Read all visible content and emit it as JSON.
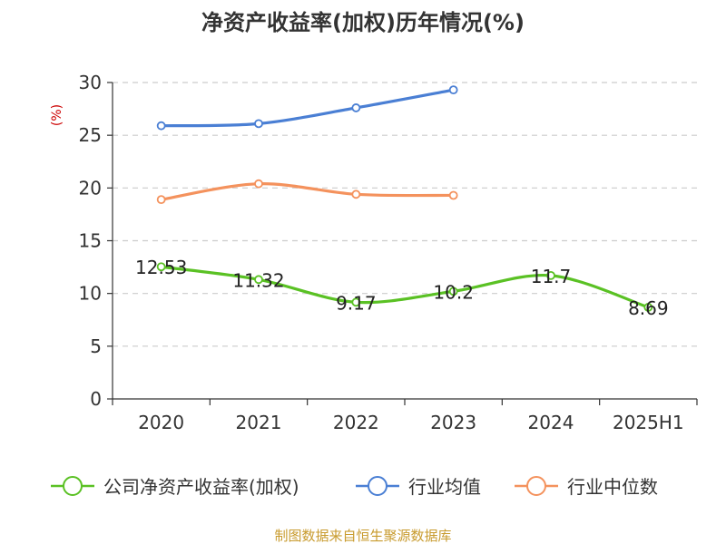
{
  "chart_data": {
    "type": "line",
    "title": "净资产收益率(加权)历年情况(%)",
    "unit_label": "(%)",
    "categories": [
      "2020",
      "2021",
      "2022",
      "2023",
      "2024",
      "2025H1"
    ],
    "ylim": [
      0,
      30
    ],
    "yticks": [
      0,
      5,
      10,
      15,
      20,
      25,
      30
    ],
    "ytick_labels": [
      "0",
      "5",
      "10",
      "15",
      "20",
      "25",
      "30"
    ],
    "grid": "horizontal-dashed",
    "legend_position": "bottom",
    "series": [
      {
        "name": "公司净资产收益率(加权)",
        "values": [
          12.53,
          11.32,
          9.17,
          10.2,
          11.7,
          8.69
        ],
        "data_labels": [
          "12.53",
          "11.32",
          "9.17",
          "10.2",
          "11.7",
          "8.69"
        ],
        "color": "#5ac124"
      },
      {
        "name": "行业均值",
        "values": [
          25.9,
          26.1,
          27.6,
          29.3,
          null,
          null
        ],
        "color": "#4a7fd4"
      },
      {
        "name": "行业中位数",
        "values": [
          18.9,
          20.4,
          19.4,
          19.3,
          null,
          null
        ],
        "color": "#f4925d"
      }
    ]
  },
  "colors": {
    "title": "#333333",
    "unit": "#cc0000",
    "axis": "#333333",
    "grid": "#cccccc",
    "source": "#c89b2e"
  },
  "source": "制图数据来自恒生聚源数据库"
}
